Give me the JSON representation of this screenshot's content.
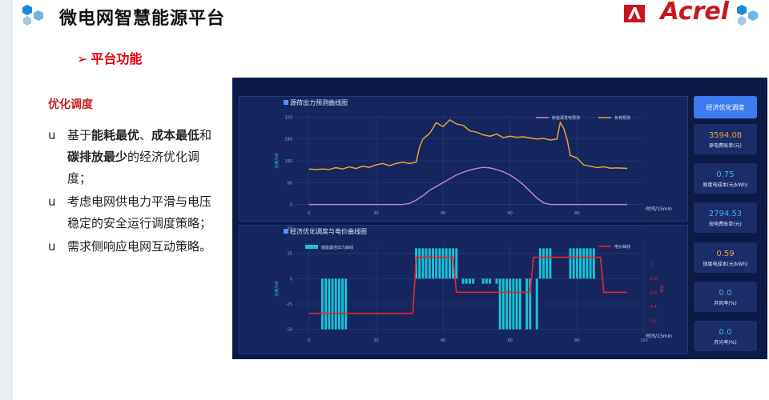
{
  "header": {
    "title": "微电网智慧能源平台",
    "brand": "Acrel"
  },
  "section": {
    "title": "平台功能"
  },
  "content": {
    "subhead": "优化调度",
    "bullet_mark": "u",
    "bullets": [
      {
        "parts": [
          [
            "基于",
            false
          ],
          [
            "能耗最优",
            true
          ],
          [
            "、",
            false
          ],
          [
            "成本最低",
            true
          ],
          [
            "和",
            false
          ],
          [
            "碳排放最少",
            true
          ],
          [
            "的经济优化调度；",
            false
          ]
        ]
      },
      {
        "parts": [
          [
            "考虑电网供电力平滑与电压稳定的安全运行调度策略；",
            false
          ]
        ]
      },
      {
        "parts": [
          [
            "需求侧响应电网互动策略。",
            false
          ]
        ]
      }
    ]
  },
  "dashboard": {
    "button_label": "经济优化调度",
    "cards": [
      {
        "value": "3594.08",
        "label": "原电费账单(元)",
        "color": "#e8a33a"
      },
      {
        "value": "0.75",
        "label": "原度电成本(元/kWh)",
        "color": "#3fb0e8"
      },
      {
        "value": "2794.53",
        "label": "现电费账单(元)",
        "color": "#3fb0e8"
      },
      {
        "value": "0.59",
        "label": "现度电成本(元/kWh)",
        "color": "#e8a33a"
      },
      {
        "value": "0.0",
        "label": "弃风率(%)",
        "color": "#3fb0e8"
      },
      {
        "value": "0.0",
        "label": "弃光率(%)",
        "color": "#3fb0e8"
      }
    ]
  },
  "chart_data": [
    {
      "type": "line",
      "title": "源荷出力预测曲线图",
      "ylabel": "功率/kW",
      "xlabel": "时间/15min",
      "ylim": [
        -10,
        330
      ],
      "yticks": [
        0,
        80,
        160,
        240,
        320
      ],
      "xticks": [
        0,
        20,
        40,
        60,
        80
      ],
      "xlim": [
        -4,
        100
      ],
      "legend_position": "top-right",
      "series": [
        {
          "name": "新能源发电预测",
          "color": "#c07ce8",
          "x": [
            0,
            4,
            8,
            12,
            16,
            20,
            24,
            28,
            30,
            32,
            34,
            36,
            38,
            40,
            42,
            44,
            46,
            48,
            50,
            52,
            54,
            56,
            58,
            60,
            62,
            64,
            66,
            68,
            70,
            72,
            74,
            76,
            80,
            84,
            88,
            92,
            95
          ],
          "y": [
            0,
            0,
            0,
            0,
            0,
            0,
            0,
            0,
            4,
            16,
            32,
            52,
            66,
            80,
            94,
            108,
            118,
            126,
            132,
            136,
            134,
            128,
            120,
            108,
            92,
            72,
            48,
            24,
            6,
            0,
            0,
            0,
            0,
            0,
            0,
            0,
            0
          ]
        },
        {
          "name": "负荷预测",
          "color": "#e8a33a",
          "x": [
            0,
            2,
            4,
            6,
            8,
            10,
            12,
            14,
            16,
            18,
            20,
            22,
            24,
            26,
            28,
            30,
            32,
            33,
            34,
            36,
            38,
            40,
            42,
            44,
            46,
            48,
            50,
            52,
            54,
            56,
            58,
            60,
            62,
            64,
            66,
            68,
            70,
            72,
            74,
            75,
            76,
            77,
            78,
            80,
            82,
            84,
            86,
            88,
            90,
            92,
            95
          ],
          "y": [
            130,
            128,
            130,
            128,
            135,
            130,
            138,
            132,
            140,
            136,
            145,
            150,
            142,
            150,
            155,
            150,
            155,
            210,
            240,
            260,
            300,
            285,
            310,
            295,
            290,
            270,
            265,
            255,
            250,
            258,
            245,
            250,
            246,
            248,
            244,
            240,
            242,
            236,
            240,
            300,
            280,
            240,
            180,
            170,
            145,
            140,
            135,
            138,
            133,
            134,
            132
          ]
        }
      ]
    },
    {
      "type": "bar",
      "title": "经济优化调度与电价曲线图",
      "ylabel": "功率/kW",
      "y2label": "电价",
      "xlabel": "时间/15min",
      "ylim": [
        -55,
        35
      ],
      "yticks": [
        -50,
        -25,
        0,
        25,
        50
      ],
      "y2ticks": [
        0.2,
        0.4,
        0.6,
        0.8,
        1.0
      ],
      "xticks": [
        0,
        20,
        40,
        60,
        80,
        100
      ],
      "xlim": [
        -4,
        100
      ],
      "legend_position": "top",
      "series": [
        {
          "name": "储能最佳出力曲线",
          "color": "#19c3d6",
          "x": [
            4,
            5,
            6,
            7,
            8,
            9,
            10,
            11,
            32,
            33,
            34,
            35,
            36,
            37,
            38,
            39,
            40,
            41,
            42,
            43,
            44,
            46,
            47,
            48,
            49,
            52,
            53,
            54,
            56,
            57,
            58,
            59,
            60,
            61,
            62,
            63,
            65,
            66,
            68,
            69,
            70,
            71,
            72,
            78,
            79,
            80,
            81,
            82,
            83,
            84,
            85
          ],
          "y": [
            -50,
            -50,
            -50,
            -50,
            -50,
            -50,
            -50,
            -50,
            30,
            30,
            30,
            30,
            30,
            30,
            30,
            30,
            30,
            30,
            30,
            30,
            30,
            -5,
            -5,
            -5,
            -5,
            -5,
            -5,
            -5,
            -5,
            -50,
            -50,
            -50,
            -50,
            -50,
            -50,
            -50,
            -50,
            -50,
            -50,
            30,
            30,
            30,
            30,
            30,
            30,
            30,
            30,
            30,
            30,
            30,
            30
          ]
        },
        {
          "name": "电价曲线",
          "color": "#e8242c",
          "x": [
            0,
            31,
            32,
            43,
            44,
            66,
            67,
            87,
            88,
            95
          ],
          "y": [
            0.3,
            0.3,
            1.1,
            1.1,
            0.6,
            0.6,
            1.1,
            1.1,
            0.6,
            0.6
          ]
        }
      ]
    }
  ]
}
